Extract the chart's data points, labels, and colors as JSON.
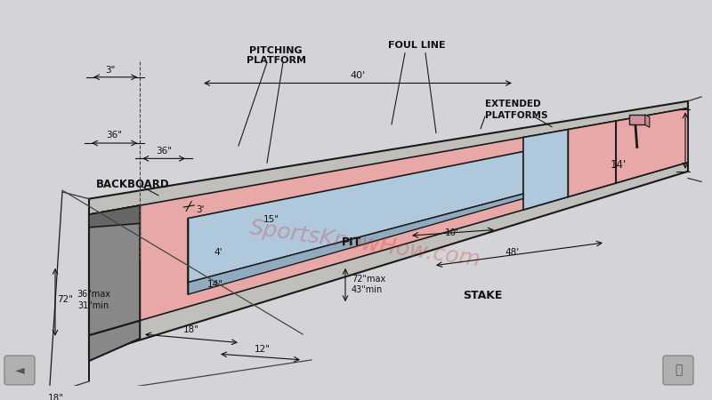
{
  "bg_color": "#d4d4d8",
  "colors": {
    "pink": "#e8a8a8",
    "pink_dark": "#d08888",
    "pink_side": "#c89090",
    "blue": "#b0c8dc",
    "blue_dark": "#90aabf",
    "gray_court": "#c0bfbc",
    "dark": "#1a1a1a",
    "gray_bb": "#888888",
    "gray_bb_side": "#666666",
    "stake_pink": "#d4909a"
  },
  "labels": {
    "backboard": "BACKBOARD",
    "pitching_platform": "PITCHING\nPLATFORM",
    "foul_line": "FOUL LINE",
    "extended_platforms": "EXTENDED\nPLATFORMS",
    "pit": "PIT",
    "stake": "STAKE"
  },
  "dims": {
    "3in": "3\"",
    "36a": "36\"",
    "36b": "36\"",
    "3ft": "3'",
    "15in": "15\"",
    "4ft": "4'",
    "14in": "14\"",
    "18a": "18\"",
    "18b": "18\"",
    "12in": "12\"",
    "72in": "72\"",
    "36max": "36\"max\n31\"min",
    "72max": "72\"max\n43\"min",
    "40ft": "40'",
    "10ft": "10'",
    "48ft": "48'",
    "14ft": "14'"
  },
  "watermark": "SportsKnowHow.com"
}
